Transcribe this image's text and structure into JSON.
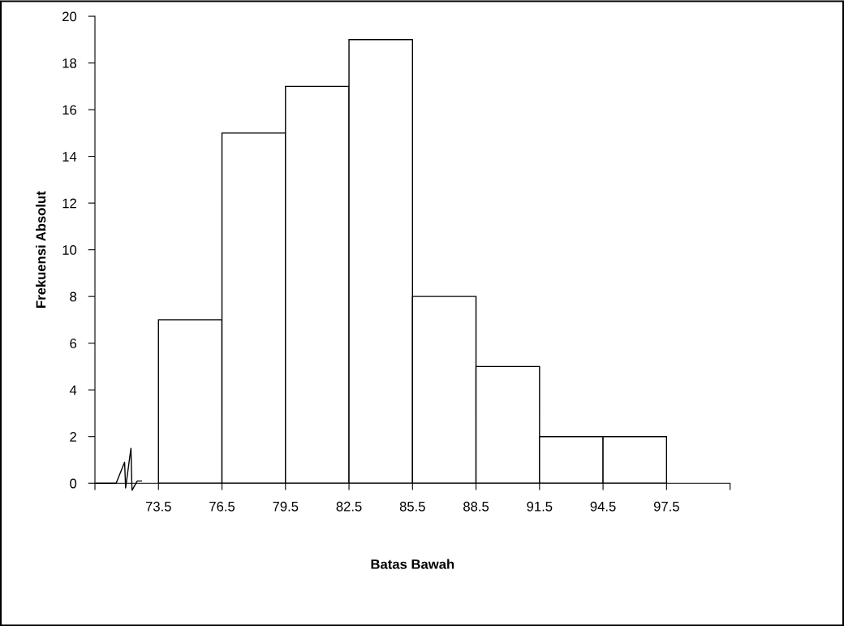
{
  "chart_data": {
    "type": "histogram",
    "xlabel": "Batas Bawah",
    "ylabel": "Frekuensi Absolut",
    "bins": [
      73.5,
      76.5,
      79.5,
      82.5,
      85.5,
      88.5,
      91.5,
      94.5,
      97.5
    ],
    "values": [
      7,
      15,
      17,
      19,
      8,
      5,
      2,
      2
    ],
    "color": "#ffffff",
    "xlim": [
      70.5,
      100.5
    ],
    "xticks": [
      {
        "value": 70.5,
        "label": null
      },
      73.5,
      76.5,
      79.5,
      82.5,
      85.5,
      88.5,
      91.5,
      94.5,
      97.5,
      {
        "value": 100.5,
        "label": null
      }
    ],
    "ylim": [
      0,
      20
    ],
    "yticks": [
      0,
      2,
      4,
      6,
      8,
      10,
      12,
      14,
      16,
      18,
      20
    ],
    "grid": false
  }
}
